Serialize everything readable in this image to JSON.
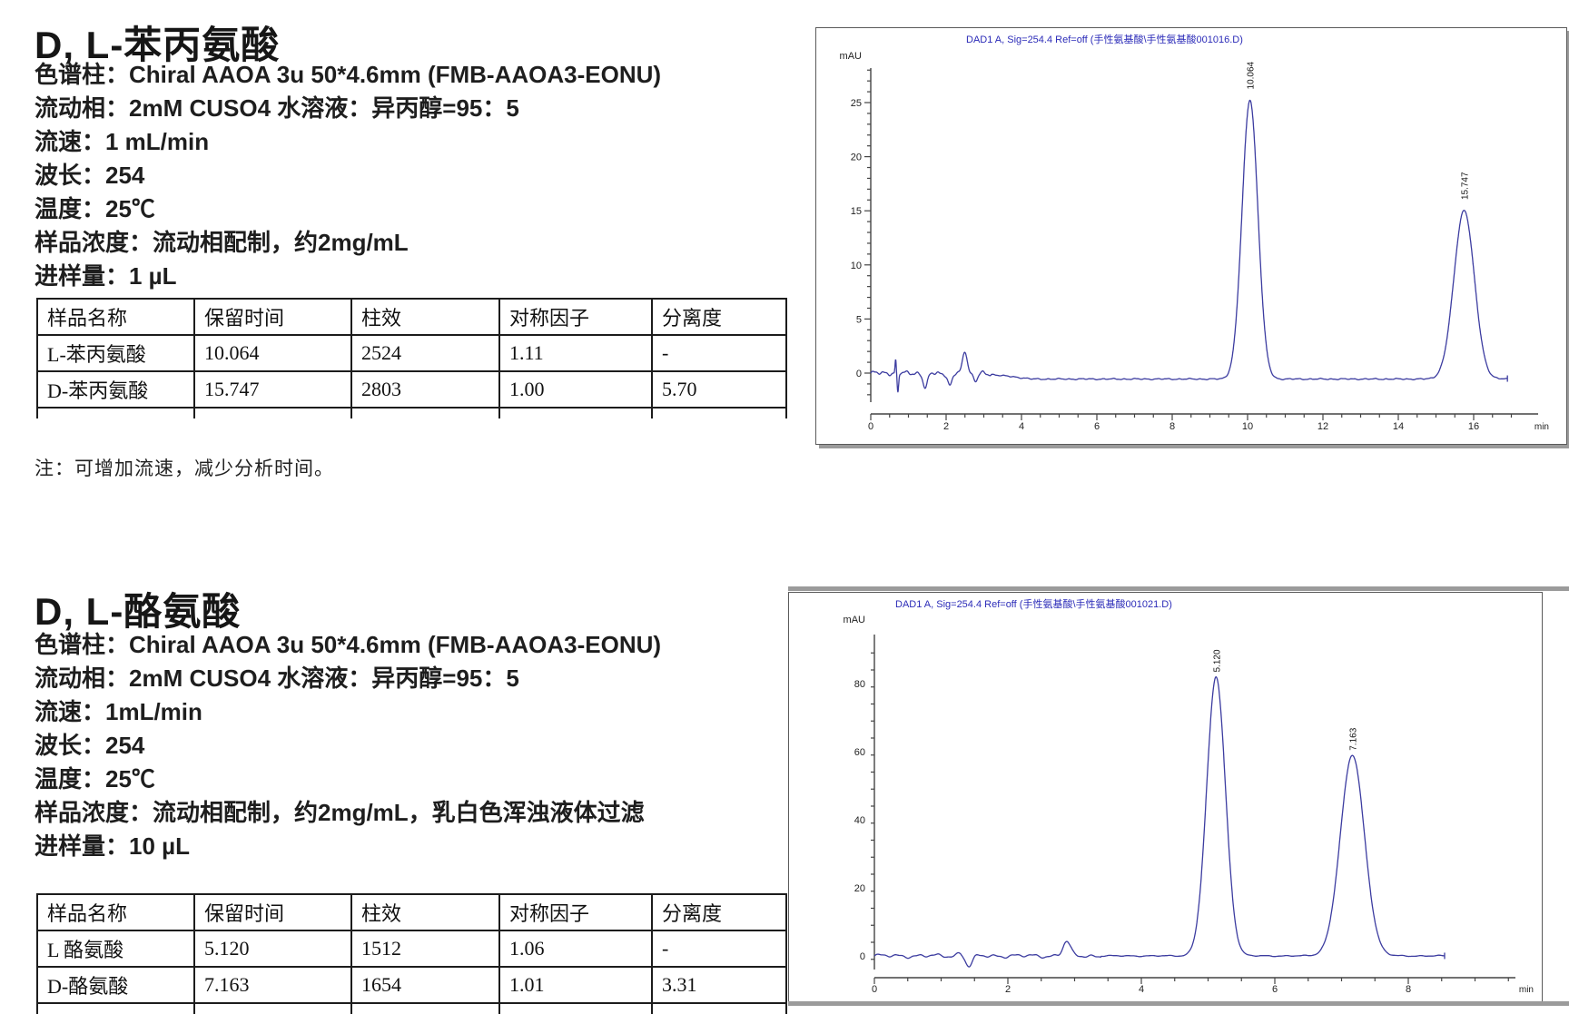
{
  "page": {
    "background": "#ffffff"
  },
  "colors": {
    "trace": "#3c3ca0",
    "chart_title": "#2b2bb8",
    "axis": "#444444",
    "tick_label": "#222222",
    "table_border": "#1c1c1c"
  },
  "sections": [
    {
      "title": "D, L-苯丙氨酸",
      "params": [
        "色谱柱：Chiral AAOA 3u 50*4.6mm (FMB-AAOA3-EONU)",
        "流动相：2mM CUSO4 水溶液：异丙醇=95：5",
        "流速：1 mL/min",
        "波长：254",
        "温度：25℃",
        "样品浓度：流动相配制，约2mg/mL",
        "进样量：1 µL"
      ],
      "table": {
        "headers": [
          "样品名称",
          "保留时间",
          "柱效",
          "对称因子",
          "分离度"
        ],
        "rows": [
          [
            "L-苯丙氨酸",
            "10.064",
            "2524",
            "1.11",
            "-"
          ],
          [
            "D-苯丙氨酸",
            "15.747",
            "2803",
            "1.00",
            "5.70"
          ]
        ]
      },
      "note": "注：可增加流速，减少分析时间。"
    },
    {
      "title": "D, L-酪氨酸",
      "params": [
        "色谱柱：Chiral AAOA 3u 50*4.6mm (FMB-AAOA3-EONU)",
        "流动相：2mM CUSO4 水溶液：异丙醇=95：5",
        "流速：1mL/min",
        "波长：254",
        "温度：25℃",
        "样品浓度：流动相配制，约2mg/mL，乳白色浑浊液体过滤",
        "进样量：10 µL"
      ],
      "table": {
        "headers": [
          "样品名称",
          "保留时间",
          "柱效",
          "对称因子",
          "分离度"
        ],
        "rows": [
          [
            "L 酪氨酸",
            "5.120",
            "1512",
            "1.06",
            "-"
          ],
          [
            "D-酪氨酸",
            "7.163",
            "1654",
            "1.01",
            "3.31"
          ]
        ]
      },
      "note": ""
    }
  ],
  "chart_data": [
    {
      "type": "line",
      "title": "DAD1 A, Sig=254.4 Ref=off (手性氨基酸\\手性氨基酸001016.D)",
      "y_label": "mAU",
      "x_label": "min",
      "x_ticks": [
        0,
        2,
        4,
        6,
        8,
        10,
        12,
        14,
        16
      ],
      "y_ticks": [
        0,
        5,
        10,
        15,
        20,
        25
      ],
      "xlim": [
        0,
        17.3
      ],
      "ylim": [
        -3,
        29
      ],
      "peaks": [
        {
          "label": "10.064",
          "t": 10.064,
          "height": 25.8,
          "sigma": 0.21
        },
        {
          "label": "15.747",
          "t": 15.747,
          "height": 15.6,
          "sigma": 0.27
        }
      ],
      "noise": [
        {
          "t": 0.66,
          "h": 1.2,
          "s": 0.015
        },
        {
          "t": 0.72,
          "h": -1.8,
          "s": 0.02
        },
        {
          "t": 1.45,
          "h": -1.4,
          "s": 0.06
        },
        {
          "t": 2.1,
          "h": -1.2,
          "s": 0.06
        },
        {
          "t": 2.5,
          "h": 2.1,
          "s": 0.06
        },
        {
          "t": 2.78,
          "h": -0.7,
          "s": 0.06
        }
      ],
      "drift": {
        "from": 2.9,
        "to": 4.3,
        "value": -0.55
      },
      "jitter": {
        "amp": 0.12,
        "until": 3.2
      },
      "trace_end": 16.9
    },
    {
      "type": "line",
      "title": "DAD1 A, Sig=254.4 Ref=off (手性氨基酸\\手性氨基酸001021.D)",
      "y_label": "mAU",
      "x_label": "min",
      "x_ticks": [
        0,
        2,
        4,
        6,
        8
      ],
      "y_ticks": [
        0,
        20,
        40,
        60,
        80
      ],
      "xlim": [
        0,
        9.7
      ],
      "ylim": [
        -6,
        95
      ],
      "peaks": [
        {
          "label": "5.120",
          "t": 5.12,
          "height": 82,
          "sigma": 0.14
        },
        {
          "label": "7.163",
          "t": 7.163,
          "height": 59,
          "sigma": 0.18
        }
      ],
      "noise": [
        {
          "t": 1.28,
          "h": 0.9,
          "s": 0.04
        },
        {
          "t": 1.42,
          "h": -3.0,
          "s": 0.05
        },
        {
          "t": 2.88,
          "h": 4.2,
          "s": 0.055
        }
      ],
      "drift": {
        "from": 0,
        "to": 0,
        "value": 0
      },
      "jitter": {
        "amp": 0.35,
        "until": 3.4
      },
      "trace_end": 8.55
    }
  ]
}
